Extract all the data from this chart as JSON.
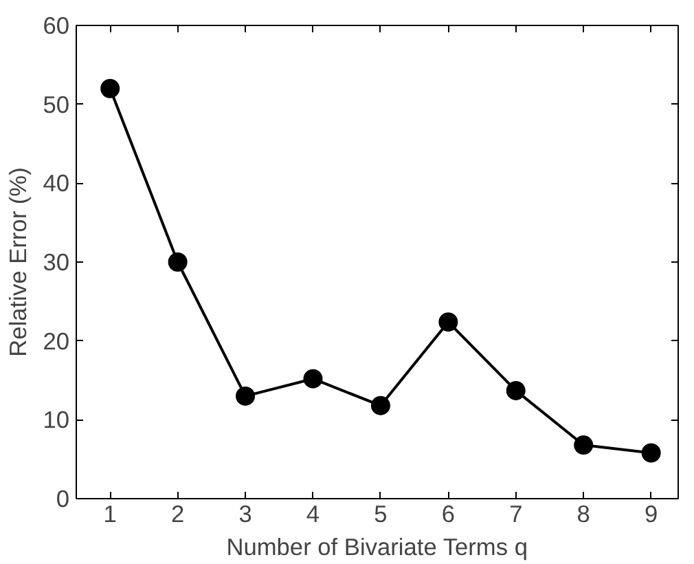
{
  "chart_data": {
    "type": "line",
    "xlabel": "Number of Bivariate Terms q",
    "ylabel": "Relative Error (%)",
    "x": [
      1,
      2,
      3,
      4,
      5,
      6,
      7,
      8,
      9
    ],
    "series": [
      {
        "color": "#000000",
        "values": [
          52,
          30,
          13,
          15.2,
          11.8,
          22.4,
          13.7,
          6.8,
          5.8
        ]
      }
    ],
    "xlim": [
      0.5,
      9.4
    ],
    "ylim": [
      0,
      60
    ],
    "xticks": [
      1,
      2,
      3,
      4,
      5,
      6,
      7,
      8,
      9
    ],
    "yticks": [
      0,
      10,
      20,
      30,
      40,
      50,
      60
    ],
    "grid": false,
    "marker": "circle",
    "line_style": "solid"
  }
}
